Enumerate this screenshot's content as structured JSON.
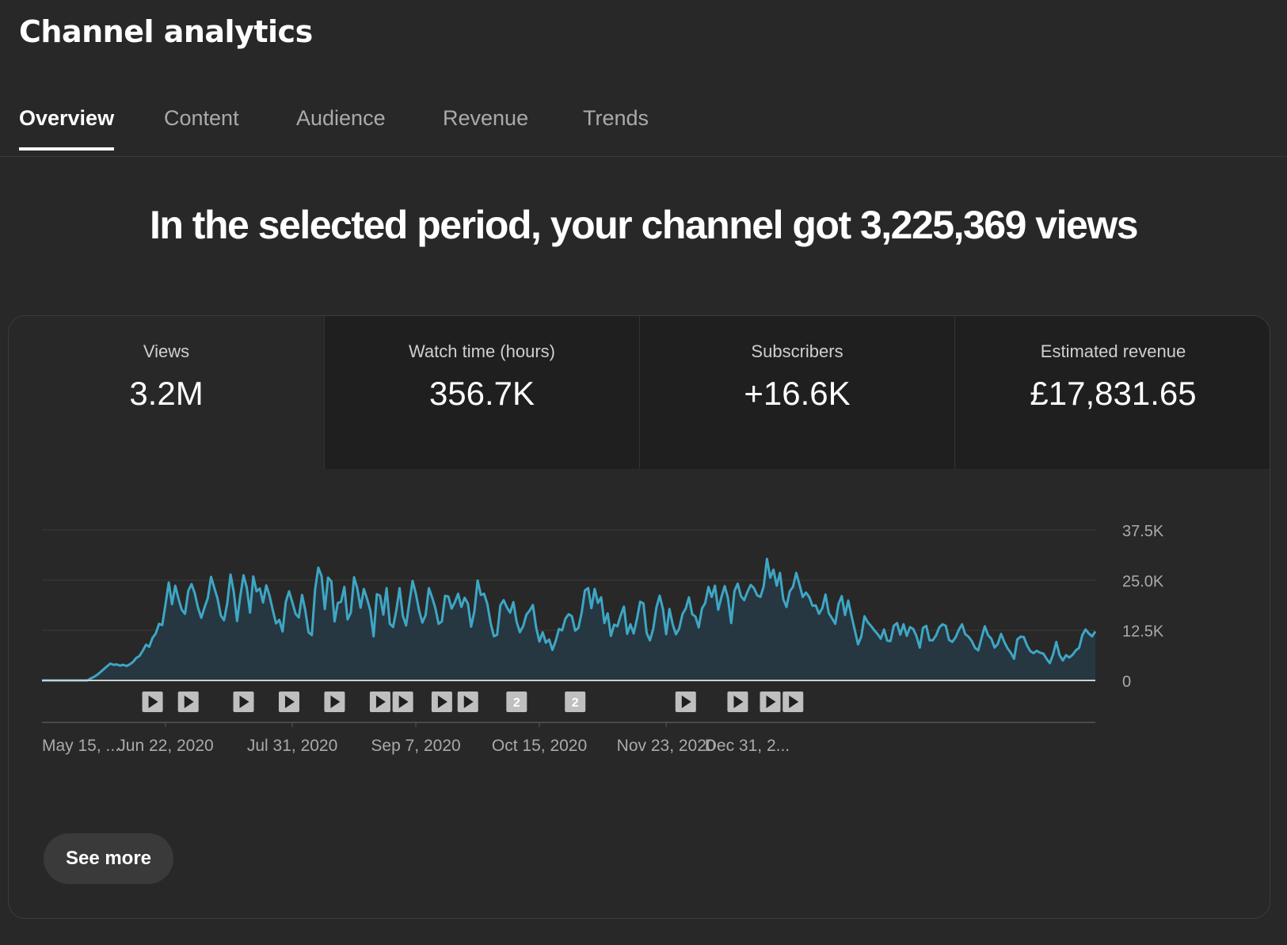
{
  "page_title": "Channel analytics",
  "tabs": [
    {
      "label": "Overview",
      "active": true
    },
    {
      "label": "Content",
      "active": false
    },
    {
      "label": "Audience",
      "active": false
    },
    {
      "label": "Revenue",
      "active": false
    },
    {
      "label": "Trends",
      "active": false
    }
  ],
  "headline": "In the selected period, your channel got 3,225,369 views",
  "metrics": [
    {
      "label": "Views",
      "value": "3.2M",
      "active": true
    },
    {
      "label": "Watch time (hours)",
      "value": "356.7K",
      "active": false
    },
    {
      "label": "Subscribers",
      "value": "+16.6K",
      "active": false
    },
    {
      "label": "Estimated revenue",
      "value": "£17,831.65",
      "active": false
    }
  ],
  "see_more_label": "See more",
  "colors": {
    "line": "#3ea6c4",
    "area": "#263741",
    "marker": "#bfbfbf"
  },
  "chart_data": {
    "type": "area",
    "series": [
      {
        "values": [
          0,
          0,
          0,
          0,
          0,
          0,
          0,
          0,
          0,
          0,
          0,
          0,
          0,
          0,
          0,
          500,
          900,
          1400,
          2100,
          2800,
          3500,
          4200,
          3900,
          4000,
          3700,
          3900,
          3600,
          4000,
          4600,
          5600,
          6100,
          7400,
          8900,
          8400,
          10600,
          11700,
          14100,
          13800,
          19000,
          24400,
          19000,
          23600,
          20300,
          17600,
          16600,
          22300,
          24000,
          21700,
          18100,
          15600,
          18200,
          20500,
          25800,
          23100,
          20400,
          16200,
          15000,
          19300,
          26400,
          22000,
          14800,
          21000,
          26200,
          23100,
          16900,
          25900,
          22200,
          22900,
          19400,
          23700,
          21100,
          17500,
          14200,
          15100,
          12200,
          19600,
          22200,
          19500,
          16600,
          15700,
          21300,
          17400,
          12000,
          11300,
          22600,
          28100,
          26000,
          17800,
          25600,
          24700,
          14700,
          19300,
          19600,
          23300,
          15200,
          16900,
          25700,
          22900,
          18100,
          22800,
          20300,
          17400,
          11000,
          21500,
          21100,
          16400,
          23000,
          14100,
          13300,
          17500,
          23000,
          16100,
          13700,
          19400,
          24800,
          21600,
          17400,
          14400,
          16300,
          23000,
          20700,
          18000,
          14100,
          14700,
          21100,
          20900,
          17900,
          19500,
          21600,
          18300,
          20600,
          19200,
          13400,
          17200,
          24900,
          21300,
          21600,
          19000,
          14300,
          11000,
          11400,
          18700,
          20000,
          18200,
          16900,
          19500,
          14600,
          12000,
          13500,
          16400,
          17400,
          18800,
          13200,
          9700,
          12000,
          9400,
          10200,
          7600,
          9800,
          12800,
          12500,
          15400,
          16500,
          16000,
          12400,
          13100,
          16900,
          22400,
          23000,
          18000,
          22800,
          19300,
          20700,
          14300,
          16700,
          11100,
          13900,
          13500,
          16200,
          18400,
          11600,
          14000,
          11700,
          15300,
          19600,
          19200,
          11800,
          10000,
          12800,
          18200,
          21100,
          17800,
          11500,
          17800,
          14000,
          11500,
          12900,
          16500,
          17900,
          20700,
          16500,
          15900,
          13200,
          17900,
          19300,
          23300,
          20800,
          23600,
          17600,
          20800,
          23500,
          20500,
          14300,
          22300,
          24100,
          21000,
          20000,
          22100,
          23800,
          23000,
          21200,
          20800,
          23500,
          30300,
          25600,
          27600,
          23600,
          26800,
          20300,
          18300,
          22200,
          23300,
          26800,
          23900,
          20800,
          21900,
          20800,
          18600,
          18700,
          16600,
          18000,
          21400,
          16800,
          15500,
          14100,
          19000,
          21000,
          16300,
          19900,
          16100,
          12600,
          9000,
          10900,
          16000,
          14500,
          13600,
          12500,
          11600,
          10400,
          12700,
          9900,
          9800,
          13600,
          14300,
          11400,
          14000,
          11100,
          13300,
          12800,
          11000,
          8200,
          13100,
          13600,
          10000,
          10000,
          11200,
          13200,
          14000,
          13600,
          10100,
          9600,
          10700,
          12600,
          14000,
          11500,
          10900,
          9800,
          8100,
          7500,
          10600,
          13500,
          11300,
          10400,
          8200,
          9100,
          11600,
          9600,
          8000,
          6900,
          5400,
          10200,
          10900,
          10800,
          8700,
          7300,
          6800,
          7400,
          6900,
          6700,
          5400,
          4300,
          6500,
          9600,
          6300,
          5000,
          6300,
          5700,
          6400,
          7500,
          8100,
          11300,
          12700,
          11700,
          11000,
          12200
        ]
      }
    ],
    "x_tick_labels": [
      "May 15, ...",
      "Jun 22, 2020",
      "Jul 31, 2020",
      "Sep 7, 2020",
      "Oct 15, 2020",
      "Nov 23, 2020",
      "Dec 31, 2..."
    ],
    "x_tick_index": [
      0,
      38,
      77,
      115,
      153,
      192,
      230
    ],
    "y_tick_labels": [
      "0",
      "12.5K",
      "25.0K",
      "37.5K"
    ],
    "y_tick_values": [
      0,
      12500,
      25000,
      37500
    ],
    "ylim": [
      0,
      37500
    ],
    "grid": true,
    "markers": [
      {
        "index": 34,
        "label": ""
      },
      {
        "index": 45,
        "label": ""
      },
      {
        "index": 62,
        "label": ""
      },
      {
        "index": 76,
        "label": ""
      },
      {
        "index": 90,
        "label": ""
      },
      {
        "index": 104,
        "label": ""
      },
      {
        "index": 111,
        "label": ""
      },
      {
        "index": 123,
        "label": ""
      },
      {
        "index": 131,
        "label": ""
      },
      {
        "index": 146,
        "label": "2"
      },
      {
        "index": 164,
        "label": "2"
      },
      {
        "index": 198,
        "label": ""
      },
      {
        "index": 214,
        "label": ""
      },
      {
        "index": 224,
        "label": ""
      },
      {
        "index": 231,
        "label": ""
      }
    ]
  }
}
